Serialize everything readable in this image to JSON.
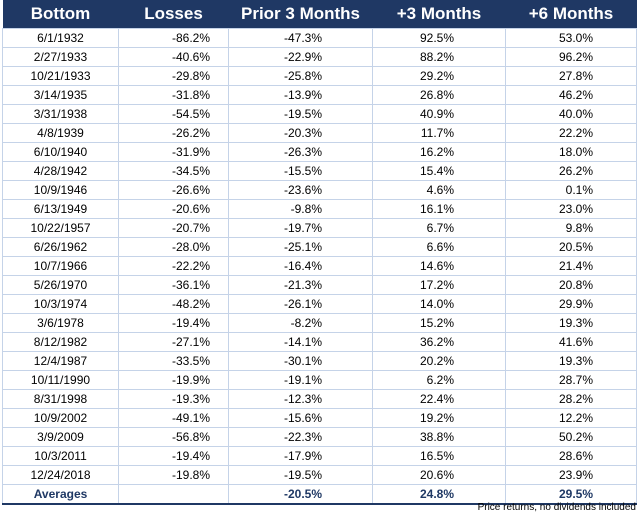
{
  "table": {
    "columns": [
      "Bottom",
      "Losses",
      "Prior 3 Months",
      "+3 Months",
      "+6 Months"
    ],
    "rows": [
      [
        "6/1/1932",
        "-86.2%",
        "-47.3%",
        "92.5%",
        "53.0%"
      ],
      [
        "2/27/1933",
        "-40.6%",
        "-22.9%",
        "88.2%",
        "96.2%"
      ],
      [
        "10/21/1933",
        "-29.8%",
        "-25.8%",
        "29.2%",
        "27.8%"
      ],
      [
        "3/14/1935",
        "-31.8%",
        "-13.9%",
        "26.8%",
        "46.2%"
      ],
      [
        "3/31/1938",
        "-54.5%",
        "-19.5%",
        "40.9%",
        "40.0%"
      ],
      [
        "4/8/1939",
        "-26.2%",
        "-20.3%",
        "11.7%",
        "22.2%"
      ],
      [
        "6/10/1940",
        "-31.9%",
        "-26.3%",
        "16.2%",
        "18.0%"
      ],
      [
        "4/28/1942",
        "-34.5%",
        "-15.5%",
        "15.4%",
        "26.2%"
      ],
      [
        "10/9/1946",
        "-26.6%",
        "-23.6%",
        "4.6%",
        "0.1%"
      ],
      [
        "6/13/1949",
        "-20.6%",
        "-9.8%",
        "16.1%",
        "23.0%"
      ],
      [
        "10/22/1957",
        "-20.7%",
        "-19.7%",
        "6.7%",
        "9.8%"
      ],
      [
        "6/26/1962",
        "-28.0%",
        "-25.1%",
        "6.6%",
        "20.5%"
      ],
      [
        "10/7/1966",
        "-22.2%",
        "-16.4%",
        "14.6%",
        "21.4%"
      ],
      [
        "5/26/1970",
        "-36.1%",
        "-21.3%",
        "17.2%",
        "20.8%"
      ],
      [
        "10/3/1974",
        "-48.2%",
        "-26.1%",
        "14.0%",
        "29.9%"
      ],
      [
        "3/6/1978",
        "-19.4%",
        "-8.2%",
        "15.2%",
        "19.3%"
      ],
      [
        "8/12/1982",
        "-27.1%",
        "-14.1%",
        "36.2%",
        "41.6%"
      ],
      [
        "12/4/1987",
        "-33.5%",
        "-30.1%",
        "20.2%",
        "19.3%"
      ],
      [
        "10/11/1990",
        "-19.9%",
        "-19.1%",
        "6.2%",
        "28.7%"
      ],
      [
        "8/31/1998",
        "-19.3%",
        "-12.3%",
        "22.4%",
        "28.2%"
      ],
      [
        "10/9/2002",
        "-49.1%",
        "-15.6%",
        "19.2%",
        "12.2%"
      ],
      [
        "3/9/2009",
        "-56.8%",
        "-22.3%",
        "38.8%",
        "50.2%"
      ],
      [
        "10/3/2011",
        "-19.4%",
        "-17.9%",
        "16.5%",
        "28.6%"
      ],
      [
        "12/24/2018",
        "-19.8%",
        "-19.5%",
        "20.6%",
        "23.9%"
      ]
    ],
    "averages": {
      "label": "Averages",
      "prior_3_months": "-20.5%",
      "plus_3_months": "24.8%",
      "plus_6_months": "29.5%"
    }
  },
  "footnote": "Price returns, no dividends included"
}
